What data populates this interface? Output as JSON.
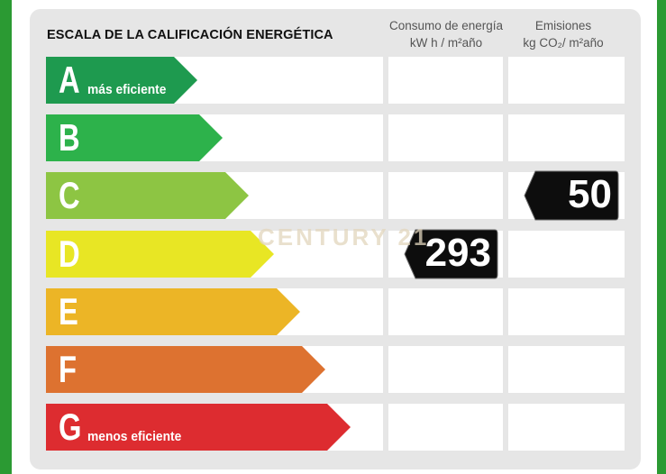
{
  "title": "ESCALA DE LA CALIFICACIÓN ENERGÉTICA",
  "columns": {
    "consumption": {
      "line1": "Consumo de energía",
      "line2": "kW h / m²año"
    },
    "emissions": {
      "line1": "Emisiones",
      "line2": "kg CO₂/ m²año"
    }
  },
  "ratings": [
    {
      "letter": "A",
      "label": "más eficiente",
      "color": "#1e9a4f"
    },
    {
      "letter": "B",
      "label": "",
      "color": "#2db24b"
    },
    {
      "letter": "C",
      "label": "",
      "color": "#8dc543"
    },
    {
      "letter": "D",
      "label": "",
      "color": "#e8e624"
    },
    {
      "letter": "E",
      "label": "",
      "color": "#ecb526"
    },
    {
      "letter": "F",
      "label": "",
      "color": "#dd7230"
    },
    {
      "letter": "G",
      "label": "menos eficiente",
      "color": "#dd2c30"
    }
  ],
  "consumption_value": {
    "value": "293",
    "rating": "D"
  },
  "emissions_value": {
    "value": "50",
    "rating": "C"
  },
  "watermark": "CENTURY 21"
}
